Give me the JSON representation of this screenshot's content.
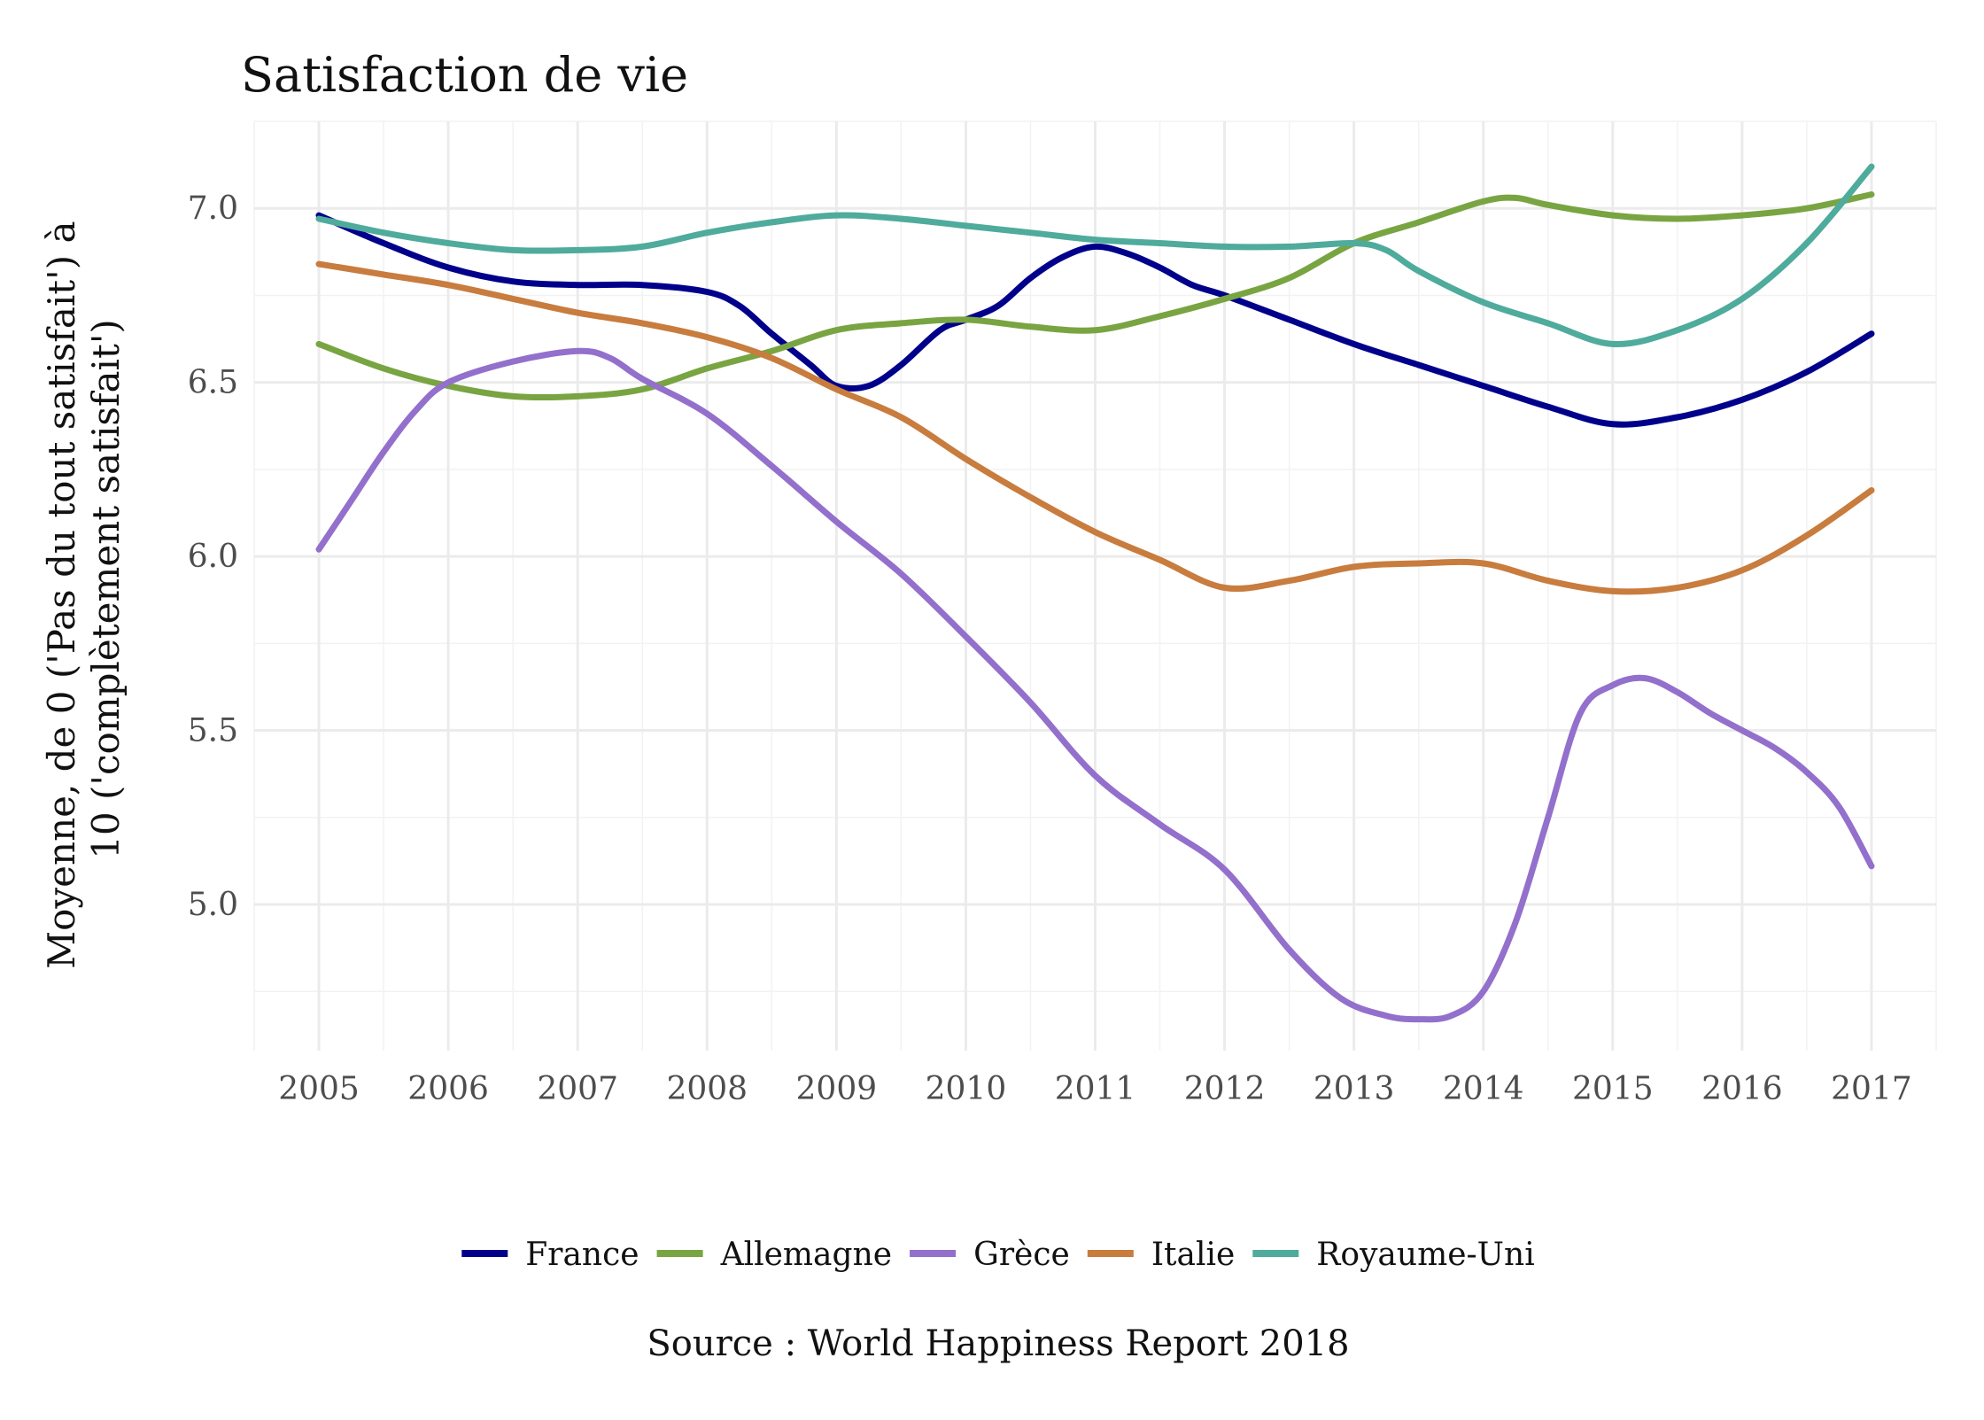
{
  "chart_data": {
    "type": "line",
    "title": "Satisfaction de vie",
    "xlabel": "",
    "ylabel_lines": [
      "Moyenne, de 0 ('Pas du tout satisfait') à",
      "10 ('complètement satisfait')"
    ],
    "caption": "Source : World Happiness Report 2018",
    "x": [
      2005,
      2006,
      2007,
      2008,
      2009,
      2010,
      2011,
      2012,
      2013,
      2014,
      2015,
      2016,
      2017
    ],
    "xlim": [
      2004.5,
      2017.5
    ],
    "ylim": [
      4.58,
      7.25
    ],
    "yticks": [
      5.0,
      5.5,
      6.0,
      6.5,
      7.0
    ],
    "ytick_labels": [
      "5.0",
      "5.5",
      "6.0",
      "6.5",
      "7.0"
    ],
    "grid": true,
    "legend_position": "bottom",
    "series": [
      {
        "name": "France",
        "color": "#00008b",
        "x": [
          2005,
          2005.5,
          2006,
          2006.5,
          2007,
          2007.5,
          2008,
          2008.25,
          2008.5,
          2008.8,
          2009,
          2009.25,
          2009.5,
          2009.8,
          2010,
          2010.25,
          2010.5,
          2010.75,
          2011,
          2011.25,
          2011.5,
          2011.75,
          2012,
          2012.5,
          2013,
          2013.5,
          2014,
          2014.5,
          2015,
          2015.5,
          2016,
          2016.5,
          2017
        ],
        "values": [
          6.98,
          6.9,
          6.83,
          6.79,
          6.78,
          6.78,
          6.76,
          6.72,
          6.64,
          6.55,
          6.49,
          6.49,
          6.55,
          6.65,
          6.68,
          6.72,
          6.8,
          6.86,
          6.89,
          6.87,
          6.83,
          6.78,
          6.75,
          6.68,
          6.61,
          6.55,
          6.49,
          6.43,
          6.38,
          6.4,
          6.45,
          6.53,
          6.64
        ]
      },
      {
        "name": "Allemagne",
        "color": "#79a442",
        "x": [
          2005,
          2005.5,
          2006,
          2006.5,
          2007,
          2007.5,
          2008,
          2008.5,
          2009,
          2009.5,
          2010,
          2010.5,
          2011,
          2011.5,
          2012,
          2012.5,
          2013,
          2013.5,
          2014,
          2014.25,
          2014.5,
          2015,
          2015.5,
          2016,
          2016.5,
          2017
        ],
        "values": [
          6.61,
          6.54,
          6.49,
          6.46,
          6.46,
          6.48,
          6.54,
          6.59,
          6.65,
          6.67,
          6.68,
          6.66,
          6.65,
          6.69,
          6.74,
          6.8,
          6.9,
          6.96,
          7.02,
          7.03,
          7.01,
          6.98,
          6.97,
          6.98,
          7.0,
          7.04
        ]
      },
      {
        "name": "Grèce",
        "color": "#9370cc",
        "x": [
          2005,
          2005.25,
          2005.5,
          2005.75,
          2006,
          2006.5,
          2007,
          2007.25,
          2007.5,
          2008,
          2008.5,
          2009,
          2009.5,
          2010,
          2010.5,
          2011,
          2011.5,
          2012,
          2012.5,
          2012.9,
          2013.25,
          2013.5,
          2013.75,
          2014,
          2014.25,
          2014.5,
          2014.75,
          2015,
          2015.25,
          2015.5,
          2015.75,
          2016,
          2016.25,
          2016.5,
          2016.75,
          2017
        ],
        "values": [
          6.02,
          6.16,
          6.3,
          6.42,
          6.5,
          6.56,
          6.59,
          6.57,
          6.51,
          6.41,
          6.26,
          6.1,
          5.95,
          5.77,
          5.58,
          5.37,
          5.23,
          5.1,
          4.87,
          4.73,
          4.68,
          4.67,
          4.68,
          4.75,
          4.95,
          5.25,
          5.55,
          5.63,
          5.65,
          5.61,
          5.55,
          5.5,
          5.45,
          5.38,
          5.28,
          5.11
        ]
      },
      {
        "name": "Italie",
        "color": "#c87c3e",
        "x": [
          2005,
          2005.5,
          2006,
          2006.5,
          2007,
          2007.5,
          2008,
          2008.5,
          2009,
          2009.5,
          2010,
          2010.5,
          2011,
          2011.5,
          2012,
          2012.5,
          2013,
          2013.5,
          2014,
          2014.5,
          2015,
          2015.5,
          2016,
          2016.5,
          2017
        ],
        "values": [
          6.84,
          6.81,
          6.78,
          6.74,
          6.7,
          6.67,
          6.63,
          6.57,
          6.48,
          6.4,
          6.28,
          6.17,
          6.07,
          5.99,
          5.91,
          5.93,
          5.97,
          5.98,
          5.98,
          5.93,
          5.9,
          5.91,
          5.96,
          6.06,
          6.19
        ]
      },
      {
        "name": "Royaume-Uni",
        "color": "#4fab9c",
        "x": [
          2005,
          2005.5,
          2006,
          2006.5,
          2007,
          2007.5,
          2008,
          2008.5,
          2009,
          2009.5,
          2010,
          2010.5,
          2011,
          2011.5,
          2012,
          2012.5,
          2013,
          2013.25,
          2013.5,
          2014,
          2014.5,
          2015,
          2015.5,
          2016,
          2016.5,
          2017
        ],
        "values": [
          6.97,
          6.93,
          6.9,
          6.88,
          6.88,
          6.89,
          6.93,
          6.96,
          6.98,
          6.97,
          6.95,
          6.93,
          6.91,
          6.9,
          6.89,
          6.89,
          6.9,
          6.88,
          6.82,
          6.73,
          6.67,
          6.61,
          6.65,
          6.74,
          6.9,
          7.12
        ]
      }
    ]
  }
}
